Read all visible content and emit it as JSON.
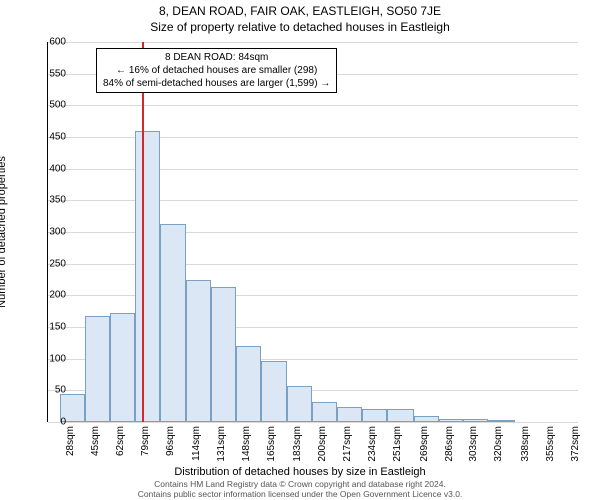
{
  "titles": {
    "main": "8, DEAN ROAD, FAIR OAK, EASTLEIGH, SO50 7JE",
    "sub": "Size of property relative to detached houses in Eastleigh"
  },
  "axes": {
    "ylabel": "Number of detached properties",
    "xlabel": "Distribution of detached houses by size in Eastleigh",
    "ylim": [
      0,
      600
    ],
    "ytick_step": 50,
    "xticks_sqm": [
      28,
      45,
      62,
      79,
      96,
      114,
      131,
      148,
      165,
      183,
      200,
      217,
      234,
      251,
      269,
      286,
      303,
      320,
      338,
      355,
      372
    ],
    "xtick_suffix": "sqm",
    "xlim": [
      20,
      381
    ]
  },
  "chart": {
    "type": "histogram",
    "bar_fill": "#dbe7f5",
    "bar_border": "#7aa0c4",
    "grid_color": "#d9d9d9",
    "background": "#ffffff",
    "bars": [
      {
        "x0": 28,
        "x1": 45,
        "y": 45
      },
      {
        "x0": 45,
        "x1": 62,
        "y": 168
      },
      {
        "x0": 62,
        "x1": 79,
        "y": 172
      },
      {
        "x0": 79,
        "x1": 96,
        "y": 460
      },
      {
        "x0": 96,
        "x1": 114,
        "y": 312
      },
      {
        "x0": 114,
        "x1": 131,
        "y": 224
      },
      {
        "x0": 131,
        "x1": 148,
        "y": 213
      },
      {
        "x0": 148,
        "x1": 165,
        "y": 120
      },
      {
        "x0": 165,
        "x1": 183,
        "y": 97
      },
      {
        "x0": 183,
        "x1": 200,
        "y": 57
      },
      {
        "x0": 200,
        "x1": 217,
        "y": 32
      },
      {
        "x0": 217,
        "x1": 234,
        "y": 23
      },
      {
        "x0": 234,
        "x1": 251,
        "y": 20
      },
      {
        "x0": 251,
        "x1": 269,
        "y": 20
      },
      {
        "x0": 269,
        "x1": 286,
        "y": 10
      },
      {
        "x0": 286,
        "x1": 303,
        "y": 5
      },
      {
        "x0": 303,
        "x1": 320,
        "y": 5
      },
      {
        "x0": 320,
        "x1": 338,
        "y": 3
      },
      {
        "x0": 338,
        "x1": 355,
        "y": 0
      },
      {
        "x0": 355,
        "x1": 372,
        "y": 0
      }
    ],
    "marker_line": {
      "x": 84,
      "color": "#d62728"
    }
  },
  "annotation": {
    "line1": "8 DEAN ROAD: 84sqm",
    "line2": "← 16% of detached houses are smaller (298)",
    "line3": "84% of semi-detached houses are larger (1,599) →"
  },
  "footer": {
    "line1": "Contains HM Land Registry data © Crown copyright and database right 2024.",
    "line2": "Contains public sector information licensed under the Open Government Licence v3.0."
  },
  "fonts": {
    "title_size_pt": 12,
    "axis_label_size_pt": 11,
    "tick_size_pt": 10,
    "annot_size_pt": 10,
    "footer_size_pt": 8.5
  }
}
